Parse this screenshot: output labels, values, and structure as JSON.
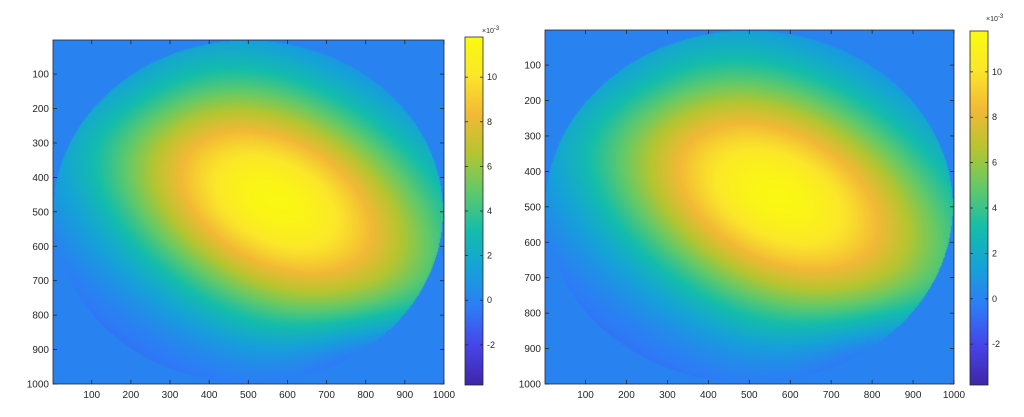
{
  "chart_data": [
    {
      "type": "heatmap",
      "x_ticks": [
        100,
        200,
        300,
        400,
        500,
        600,
        700,
        800,
        900,
        1000
      ],
      "y_ticks": [
        100,
        200,
        300,
        400,
        500,
        600,
        700,
        800,
        900,
        1000
      ],
      "xlim": [
        1,
        1000
      ],
      "ylim": [
        1,
        1000
      ],
      "y_reversed": true,
      "field": {
        "aperture": "elliptical",
        "background_value": 0,
        "peak_value": 11.5,
        "peak_location": [
          570,
          470
        ],
        "min_value": -3.7,
        "min_location": [
          860,
          930
        ]
      },
      "colorbar": {
        "ticks": [
          -2,
          0,
          2,
          4,
          6,
          8,
          10
        ],
        "range": [
          -3.8,
          11.8
        ],
        "exponent_label": "×10",
        "exponent_power": "-3"
      },
      "colormap": "parula"
    },
    {
      "type": "heatmap",
      "x_ticks": [
        100,
        200,
        300,
        400,
        500,
        600,
        700,
        800,
        900,
        1000
      ],
      "y_ticks": [
        100,
        200,
        300,
        400,
        500,
        600,
        700,
        800,
        900,
        1000
      ],
      "xlim": [
        1,
        1000
      ],
      "ylim": [
        1,
        1000
      ],
      "y_reversed": true,
      "field": {
        "aperture": "elliptical",
        "background_value": 0,
        "peak_value": 11.5,
        "peak_location": [
          570,
          470
        ],
        "min_value": -3.7,
        "min_location": [
          860,
          930
        ]
      },
      "colorbar": {
        "ticks": [
          -2,
          0,
          2,
          4,
          6,
          8,
          10
        ],
        "range": [
          -3.8,
          11.8
        ],
        "exponent_label": "×10",
        "exponent_power": "-3"
      },
      "colormap": "parula"
    }
  ],
  "colors": {
    "parula": [
      "#3e26a8",
      "#4744e8",
      "#2d7cf6",
      "#15a2d8",
      "#14bdaa",
      "#60c96a",
      "#b5c530",
      "#f2b935",
      "#fbe62a",
      "#f9fb0e"
    ],
    "axis": "#262626",
    "tick_text": "#262626"
  }
}
